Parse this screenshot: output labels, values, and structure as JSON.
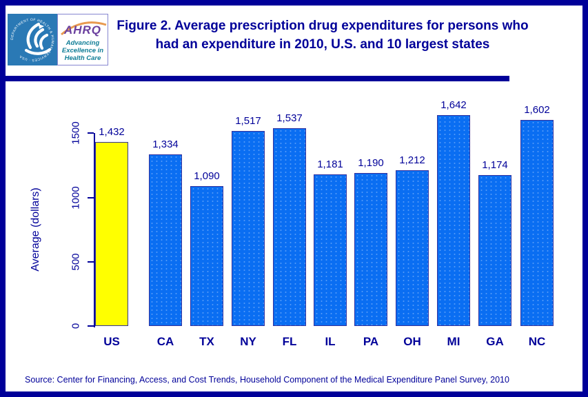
{
  "header": {
    "title_line1": "Figure 2. Average prescription drug expenditures for persons who",
    "title_line2": "had an expenditure in 2010, U.S. and 10 largest states",
    "logo": {
      "hhs_seal_text": "DEPARTMENT OF HEALTH & HUMAN SERVICES · USA",
      "ahrq_acronym": "AHRQ",
      "tagline_line1": "Advancing",
      "tagline_line2": "Excellence in",
      "tagline_line3": "Health Care"
    }
  },
  "chart_data": {
    "type": "bar",
    "title": "Figure 2. Average prescription drug expenditures for persons who had an expenditure in 2010, U.S. and 10 largest states",
    "categories": [
      "US",
      "CA",
      "TX",
      "NY",
      "FL",
      "IL",
      "PA",
      "OH",
      "MI",
      "GA",
      "NC"
    ],
    "values": [
      1432,
      1334,
      1090,
      1517,
      1537,
      1181,
      1190,
      1212,
      1642,
      1174,
      1602
    ],
    "value_labels": [
      "1,432",
      "1,334",
      "1,090",
      "1,517",
      "1,537",
      "1,181",
      "1,190",
      "1,212",
      "1,642",
      "1,174",
      "1,602"
    ],
    "highlight_index": 0,
    "xlabel": "",
    "ylabel": "Average (dollars)",
    "yticks": [
      0,
      500,
      1000,
      1500
    ],
    "ytick_labels": [
      "0",
      "500",
      "1000",
      "1500"
    ],
    "ylim": [
      0,
      1700
    ],
    "grid": false,
    "legend": null,
    "colors": {
      "bar_default": "#0a6ef2",
      "bar_highlight": "#ffff00",
      "bar_border": "#31319e",
      "axis": "#000099",
      "text": "#000099"
    }
  },
  "footer": {
    "source": "Source: Center for Financing, Access, and Cost Trends, Household Component of the Medical Expenditure Panel Survey, 2010"
  }
}
